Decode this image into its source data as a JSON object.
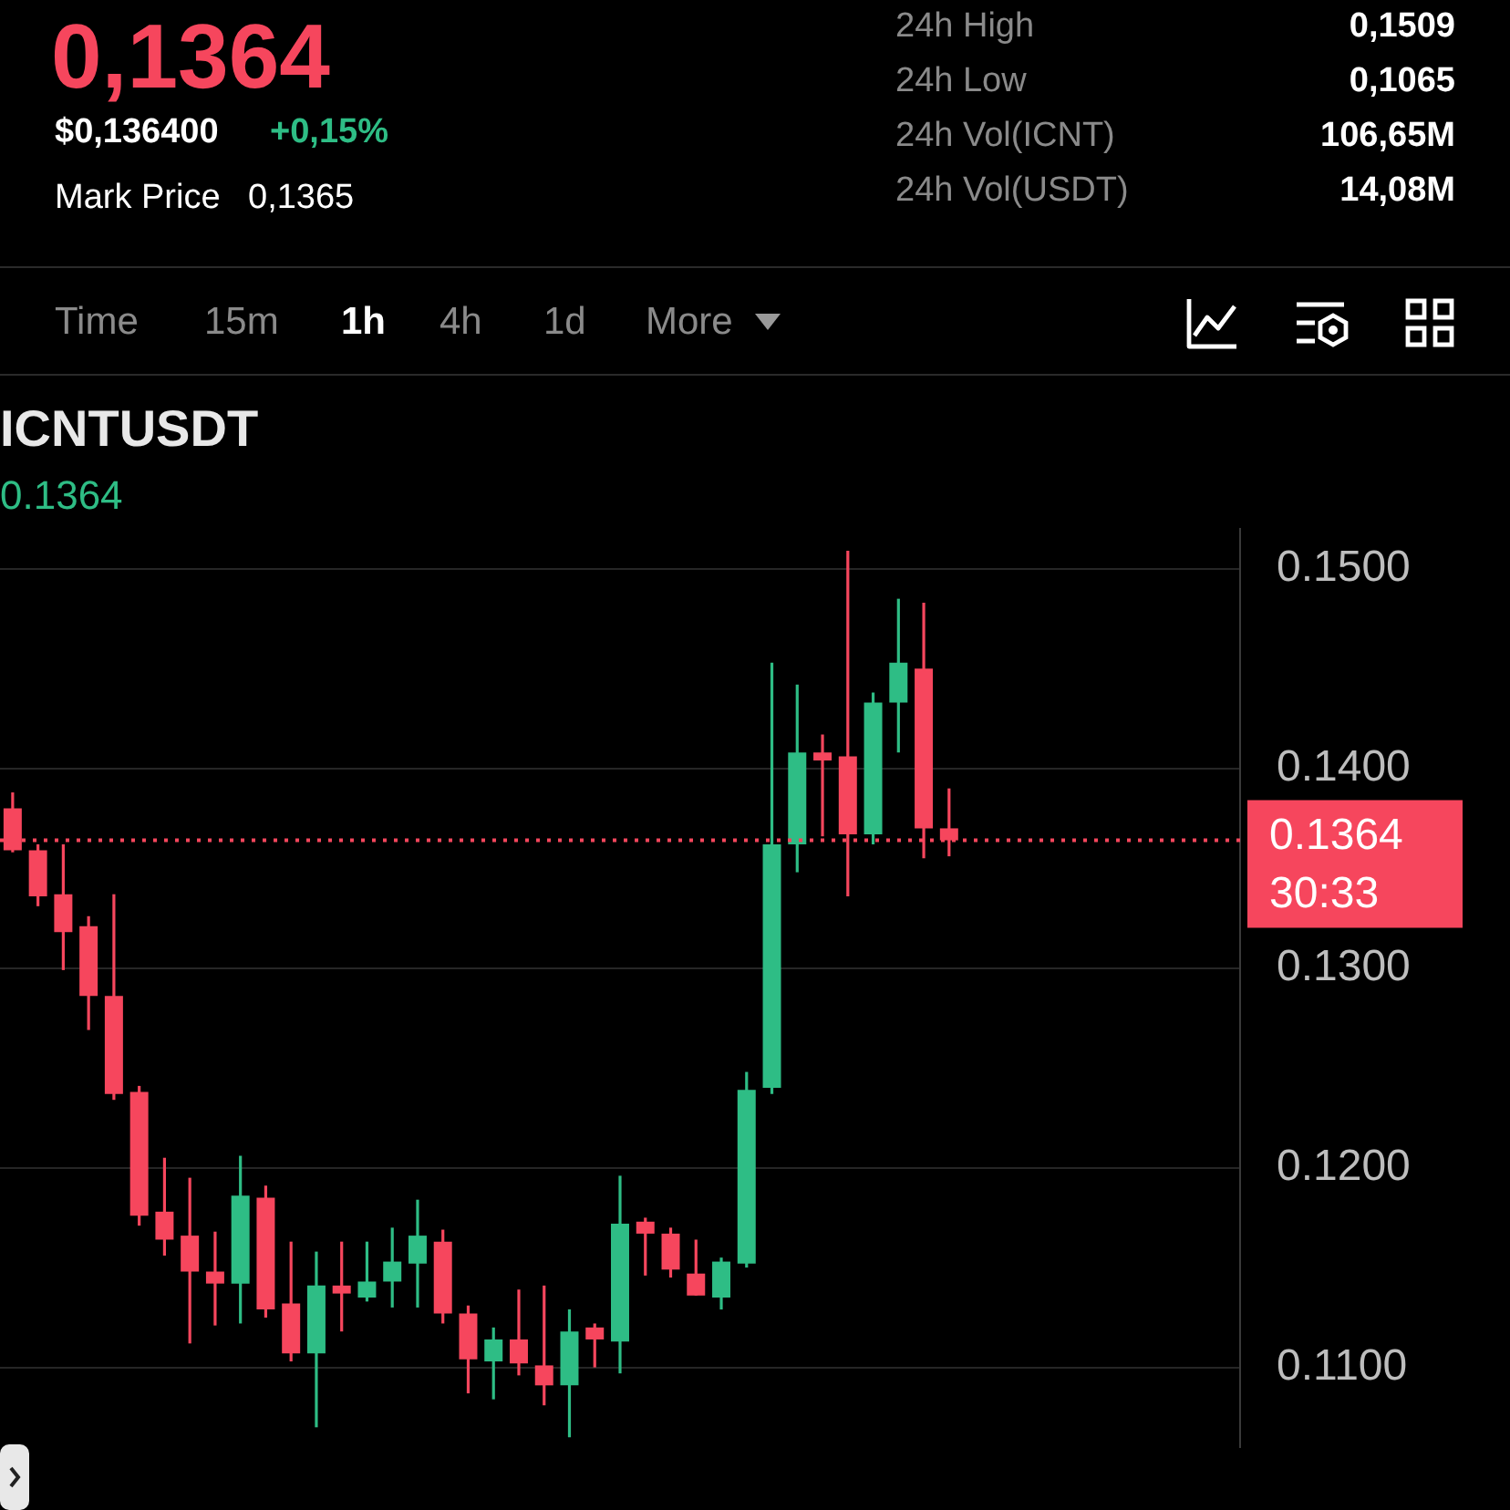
{
  "chart_data": {
    "type": "candlestick",
    "title": "ICNTUSDT",
    "subtitle": "0.1364",
    "categories": [
      null,
      null,
      null,
      null,
      null,
      null,
      null,
      null,
      null,
      null,
      null,
      null,
      null,
      null,
      null,
      null,
      null,
      null,
      null,
      null,
      null,
      null,
      null,
      null,
      null,
      null,
      null,
      null,
      null,
      null,
      null,
      null,
      null,
      null,
      null,
      null,
      null,
      null,
      null,
      null,
      null,
      null,
      null,
      null,
      null,
      null,
      null,
      null,
      null
    ],
    "ohlc": [
      [
        0.138,
        0.1388,
        0.1358,
        0.1359
      ],
      [
        0.1359,
        0.1362,
        0.1331,
        0.1336
      ],
      [
        0.1337,
        0.1362,
        0.1299,
        0.1318
      ],
      [
        0.1321,
        0.1326,
        0.1269,
        0.1286
      ],
      [
        0.1286,
        0.1337,
        0.1234,
        0.1237
      ],
      [
        0.1238,
        0.1241,
        0.1171,
        0.1176
      ],
      [
        0.1178,
        0.1205,
        0.1156,
        0.1164
      ],
      [
        0.1166,
        0.1195,
        0.1112,
        0.1148
      ],
      [
        0.1148,
        0.1168,
        0.1121,
        0.1142
      ],
      [
        0.1142,
        0.1206,
        0.1122,
        0.1186
      ],
      [
        0.1185,
        0.1191,
        0.1125,
        0.1129
      ],
      [
        0.1132,
        0.1163,
        0.1103,
        0.1107
      ],
      [
        0.1107,
        0.1158,
        0.107,
        0.1141
      ],
      [
        0.1141,
        0.1163,
        0.1118,
        0.1137
      ],
      [
        0.1135,
        0.1163,
        0.1133,
        0.1143
      ],
      [
        0.1143,
        0.117,
        0.113,
        0.1153
      ],
      [
        0.1152,
        0.1184,
        0.113,
        0.1166
      ],
      [
        0.1163,
        0.1169,
        0.1122,
        0.1127
      ],
      [
        0.1127,
        0.1131,
        0.1087,
        0.1104
      ],
      [
        0.1103,
        0.112,
        0.1084,
        0.1114
      ],
      [
        0.1114,
        0.1139,
        0.1096,
        0.1102
      ],
      [
        0.1101,
        0.1141,
        0.1081,
        0.1091
      ],
      [
        0.1091,
        0.1129,
        0.1065,
        0.1118
      ],
      [
        0.112,
        0.1122,
        0.11,
        0.1114
      ],
      [
        0.1113,
        0.1196,
        0.1097,
        0.1172
      ],
      [
        0.1173,
        0.1175,
        0.1146,
        0.1167
      ],
      [
        0.1167,
        0.117,
        0.1145,
        0.1149
      ],
      [
        0.1147,
        0.1164,
        0.1136,
        0.1136
      ],
      [
        0.1135,
        0.1155,
        0.1129,
        0.1153
      ],
      [
        0.1152,
        0.1248,
        0.115,
        0.1239
      ],
      [
        0.124,
        0.1453,
        0.1237,
        0.1362
      ],
      [
        0.1362,
        0.1442,
        0.1348,
        0.1408
      ],
      [
        0.1408,
        0.1417,
        0.1366,
        0.1404
      ],
      [
        0.1406,
        0.1509,
        0.1336,
        0.1367
      ],
      [
        0.1367,
        0.1438,
        0.1362,
        0.1433
      ],
      [
        0.1433,
        0.1485,
        0.1408,
        0.1453
      ],
      [
        0.145,
        0.1483,
        0.1355,
        0.137
      ],
      [
        0.137,
        0.139,
        0.1356,
        0.1364
      ],
      null,
      null,
      null,
      null,
      null,
      null,
      null,
      null,
      null,
      null,
      null
    ],
    "colors": [
      "#f6465d",
      "#f6465d",
      "#f6465d",
      "#f6465d",
      "#f6465d",
      "#f6465d",
      "#f6465d",
      "#f6465d",
      "#f6465d",
      "#2ebd85",
      "#f6465d",
      "#f6465d",
      "#2ebd85",
      "#f6465d",
      "#2ebd85",
      "#2ebd85",
      "#2ebd85",
      "#f6465d",
      "#f6465d",
      "#2ebd85",
      "#f6465d",
      "#f6465d",
      "#2ebd85",
      "#f6465d",
      "#2ebd85",
      "#f6465d",
      "#f6465d",
      "#f6465d",
      "#2ebd85",
      "#2ebd85",
      "#2ebd85",
      "#2ebd85",
      "#f6465d",
      "#f6465d",
      "#2ebd85",
      "#2ebd85",
      "#f6465d",
      "#f6465d",
      null,
      null,
      null,
      null,
      null,
      null,
      null,
      null,
      null,
      null,
      null
    ],
    "ylim": [
      0.106,
      0.152
    ],
    "yticks": [
      {
        "value": 0.11,
        "label": "0.1100"
      },
      {
        "value": 0.12,
        "label": "0.1200"
      },
      {
        "value": 0.13,
        "label": "0.1300"
      },
      {
        "value": 0.14,
        "label": "0.1400"
      },
      {
        "value": 0.15,
        "label": "0.1500"
      }
    ],
    "ref_lines": [
      {
        "axis": "y",
        "value": 0.1364,
        "label": "0.1364",
        "color": "#f6465d",
        "line_style": "dotted"
      }
    ],
    "grid": "y",
    "legend": false,
    "tick_labels": "y",
    "annotations": [
      "0,1364",
      "$0,136400",
      "+0,15%",
      "Mark Price",
      "0,1365",
      "24h High",
      "0,1509",
      "24h Low",
      "0,1065",
      "24h Vol(ICNT)",
      "106,65M",
      "24h Vol(USDT)",
      "14,08M",
      "Time",
      "15m",
      "1h",
      "4h",
      "1d",
      "More",
      "30:33"
    ]
  }
}
